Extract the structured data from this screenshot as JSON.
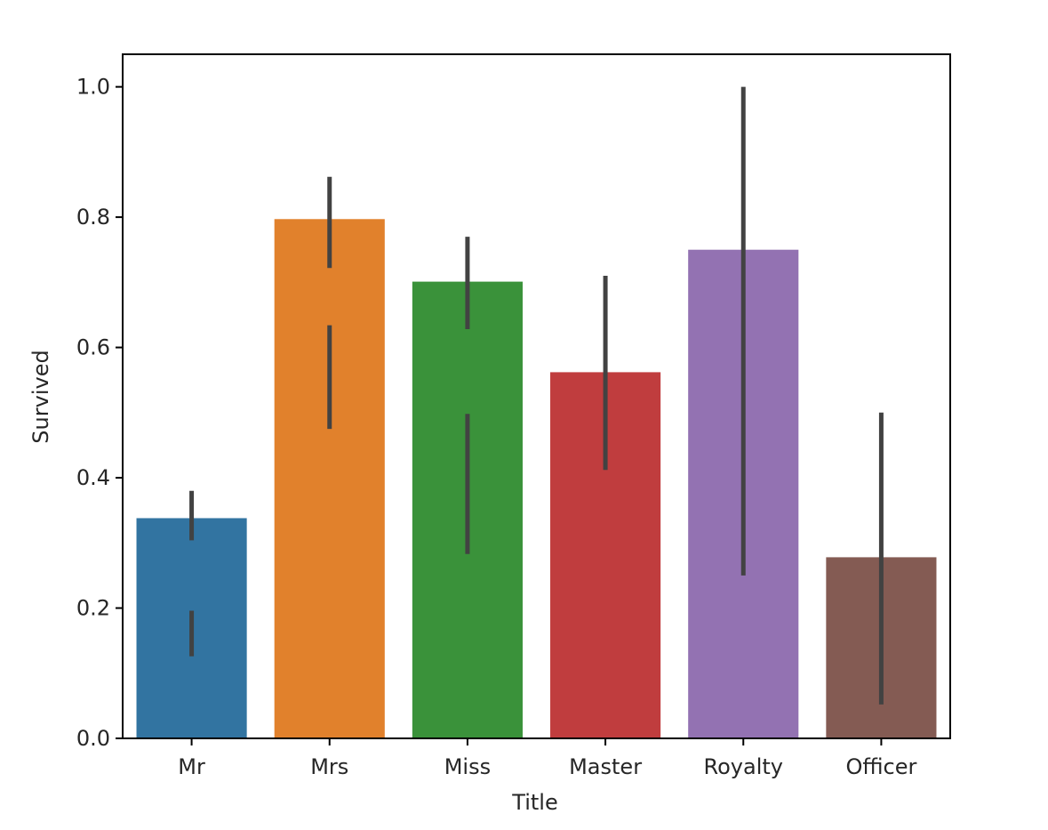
{
  "chart_data": {
    "type": "bar",
    "title": "",
    "xlabel": "Title",
    "ylabel": "Survived",
    "ylim": [
      0.0,
      1.05
    ],
    "yticks": [
      0.0,
      0.2,
      0.4,
      0.6,
      0.8,
      1.0
    ],
    "ytick_labels": [
      "0.0",
      "0.2",
      "0.4",
      "0.6",
      "0.8",
      "1.0"
    ],
    "grid": false,
    "legend": "none",
    "categories": [
      "Mr",
      "Mrs",
      "Miss",
      "Master",
      "Royalty",
      "Officer"
    ],
    "values": [
      0.338,
      0.797,
      0.701,
      0.562,
      0.75,
      0.278
    ],
    "colors": [
      "#3274a1",
      "#e1812c",
      "#3a923a",
      "#c03d3e",
      "#9372b2",
      "#845b53"
    ],
    "error_bar_color": "#424242",
    "error_segments": [
      [
        [
          0.304,
          0.38
        ],
        [
          0.126,
          0.196
        ]
      ],
      [
        [
          0.722,
          0.862
        ],
        [
          0.475,
          0.634
        ]
      ],
      [
        [
          0.628,
          0.77
        ],
        [
          0.283,
          0.498
        ]
      ],
      [
        [
          0.412,
          0.71
        ]
      ],
      [
        [
          0.25,
          1.0
        ]
      ],
      [
        [
          0.052,
          0.5
        ]
      ]
    ]
  }
}
